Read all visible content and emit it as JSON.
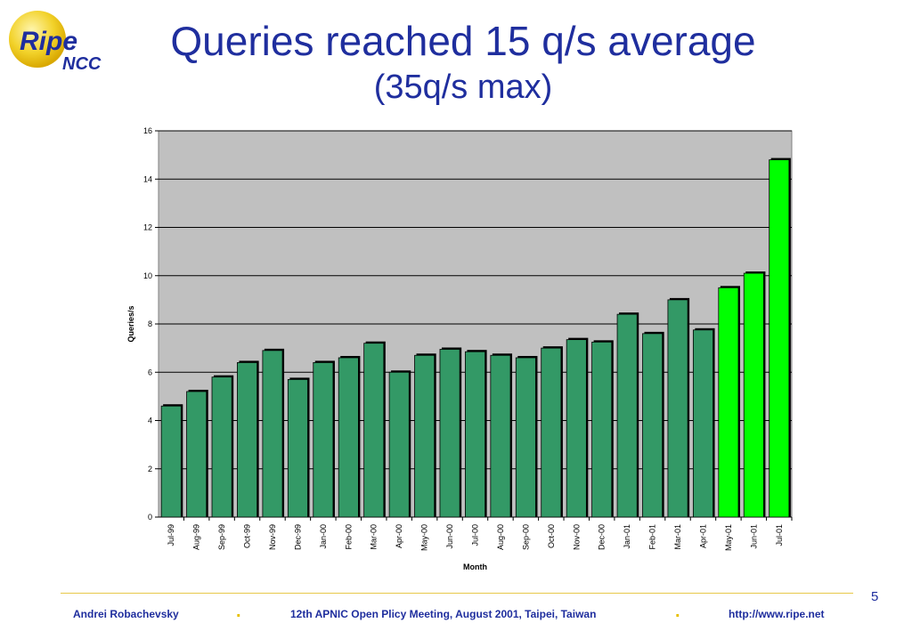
{
  "logo": {
    "word": "Ripe",
    "sub": "NCC"
  },
  "title": {
    "line1": "Queries reached 15 q/s average",
    "line2": "(35q/s max)"
  },
  "page_number": "5",
  "footer": {
    "author": "Andrei Robachevsky",
    "event": "12th APNIC Open Plicy Meeting, August 2001, Taipei, Taiwan",
    "url": "http://www.ripe.net",
    "bullet": "."
  },
  "colors": {
    "title": "#1f2e9e",
    "bar_normal": "#339966",
    "bar_highlight": "#00ff00",
    "plot_area": "#c0c0c0",
    "footer_rule": "#e8c84a"
  },
  "chart_data": {
    "type": "bar",
    "title": "",
    "xlabel": "Month",
    "ylabel": "Queries/s",
    "ylim": [
      0,
      16
    ],
    "yticks": [
      0,
      2,
      4,
      6,
      8,
      10,
      12,
      14,
      16
    ],
    "grid": true,
    "legend": "none",
    "categories": [
      "Jul-99",
      "Aug-99",
      "Sep-99",
      "Oct-99",
      "Nov-99",
      "Dec-99",
      "Jan-00",
      "Feb-00",
      "Mar-00",
      "Apr-00",
      "May-00",
      "Jun-00",
      "Jul-00",
      "Aug-00",
      "Sep-00",
      "Oct-00",
      "Nov-00",
      "Dec-00",
      "Jan-01",
      "Feb-01",
      "Mar-01",
      "Apr-01",
      "May-01",
      "Jun-01",
      "Jul-01"
    ],
    "values": [
      4.6,
      5.2,
      5.8,
      6.4,
      6.9,
      5.7,
      6.4,
      6.6,
      7.2,
      6.0,
      6.7,
      6.95,
      6.85,
      6.7,
      6.6,
      7.0,
      7.35,
      7.25,
      8.4,
      7.6,
      9.0,
      7.75,
      9.5,
      10.1,
      14.8
    ],
    "highlighted": [
      "May-01",
      "Jun-01",
      "Jul-01"
    ]
  }
}
